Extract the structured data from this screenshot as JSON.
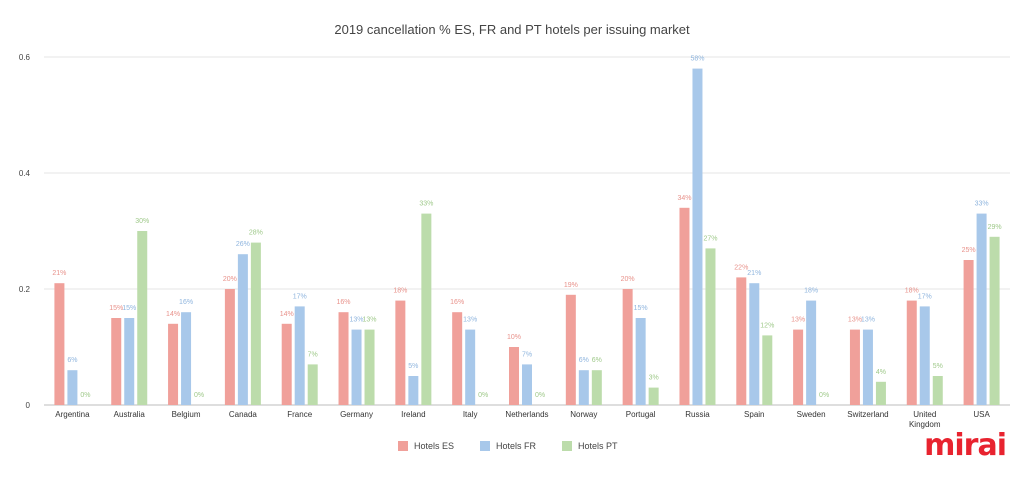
{
  "chart_data": {
    "type": "bar",
    "title": "2019 cancellation % ES, FR and PT hotels per issuing market",
    "xlabel": "",
    "ylabel": "",
    "ylim": [
      0,
      0.6
    ],
    "yticks": [
      "0",
      "0.2",
      "0.4",
      "0.6"
    ],
    "ytick_values": [
      0,
      0.2,
      0.4,
      0.6
    ],
    "grid": true,
    "legend_position": "bottom-center",
    "categories": [
      "Argentina",
      "Australia",
      "Belgium",
      "Canada",
      "France",
      "Germany",
      "Ireland",
      "Italy",
      "Netherlands",
      "Norway",
      "Portugal",
      "Russia",
      "Spain",
      "Sweden",
      "Switzerland",
      "United Kingdom",
      "USA"
    ],
    "series": [
      {
        "name": "Hotels ES",
        "color": "#f0a09a",
        "labelColor": "#e8928b",
        "values": [
          0.21,
          0.15,
          0.14,
          0.2,
          0.14,
          0.16,
          0.18,
          0.16,
          0.1,
          0.19,
          0.2,
          0.34,
          0.22,
          0.13,
          0.13,
          0.18,
          0.25
        ],
        "labels": [
          "21%",
          "15%",
          "14%",
          "20%",
          "14%",
          "16%",
          "18%",
          "16%",
          "10%",
          "19%",
          "20%",
          "34%",
          "22%",
          "13%",
          "13%",
          "18%",
          "25%"
        ]
      },
      {
        "name": "Hotels FR",
        "color": "#a8c8ea",
        "labelColor": "#8fb5de",
        "values": [
          0.06,
          0.15,
          0.16,
          0.26,
          0.17,
          0.13,
          0.05,
          0.13,
          0.07,
          0.06,
          0.15,
          0.58,
          0.21,
          0.18,
          0.13,
          0.17,
          0.33
        ],
        "labels": [
          "6%",
          "15%",
          "16%",
          "26%",
          "17%",
          "13%",
          "5%",
          "13%",
          "7%",
          "6%",
          "15%",
          "58%",
          "21%",
          "18%",
          "13%",
          "17%",
          "33%"
        ]
      },
      {
        "name": "Hotels PT",
        "color": "#bcdcab",
        "labelColor": "#9fc98a",
        "values": [
          0.0,
          0.3,
          0.0,
          0.28,
          0.07,
          0.13,
          0.33,
          0.0,
          0.0,
          0.06,
          0.03,
          0.27,
          0.12,
          0.0,
          0.04,
          0.05,
          0.29
        ],
        "labels": [
          "0%",
          "30%",
          "0%",
          "28%",
          "7%",
          "13%",
          "33%",
          "0%",
          "0%",
          "6%",
          "3%",
          "27%",
          "12%",
          "0%",
          "4%",
          "5%",
          "29%"
        ]
      }
    ]
  },
  "brand": {
    "logo_text": "mirai"
  }
}
